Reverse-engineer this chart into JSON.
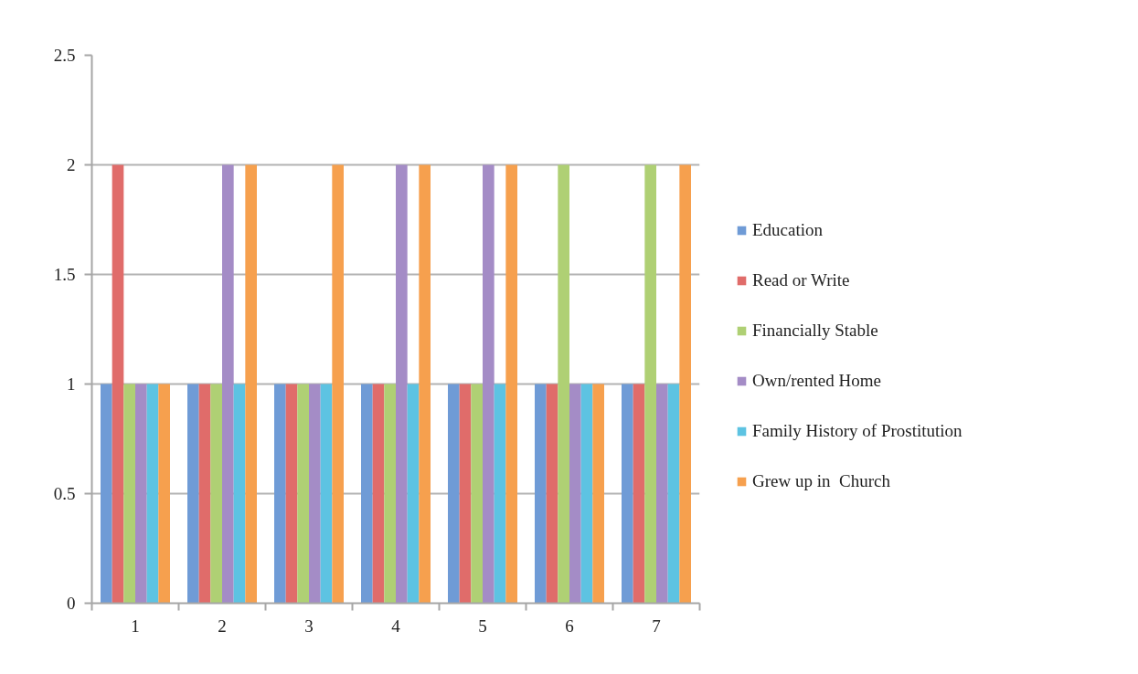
{
  "chart_data": {
    "type": "bar",
    "categories": [
      "1",
      "2",
      "3",
      "4",
      "5",
      "6",
      "7"
    ],
    "series": [
      {
        "name": "Education",
        "color": "#6f9bd6",
        "values": [
          1,
          1,
          1,
          1,
          1,
          1,
          1
        ]
      },
      {
        "name": "Read or Write",
        "color": "#e06c6a",
        "values": [
          2,
          1,
          1,
          1,
          1,
          1,
          1
        ]
      },
      {
        "name": "Financially Stable",
        "color": "#afd074",
        "values": [
          1,
          1,
          1,
          1,
          1,
          2,
          2
        ]
      },
      {
        "name": "Own/rented Home",
        "color": "#a48cc6",
        "values": [
          1,
          2,
          1,
          2,
          2,
          1,
          1
        ]
      },
      {
        "name": "Family History of Prostitution",
        "color": "#5dc3e2",
        "values": [
          1,
          1,
          1,
          1,
          1,
          1,
          1
        ]
      },
      {
        "name": "Grew up in  Church",
        "color": "#f6a04e",
        "values": [
          1,
          2,
          2,
          2,
          2,
          1,
          2
        ]
      }
    ],
    "ylim": [
      0,
      2.5
    ],
    "yticks": [
      0,
      0.5,
      1,
      1.5,
      2,
      2.5
    ],
    "grid": "y",
    "legend": "right"
  }
}
